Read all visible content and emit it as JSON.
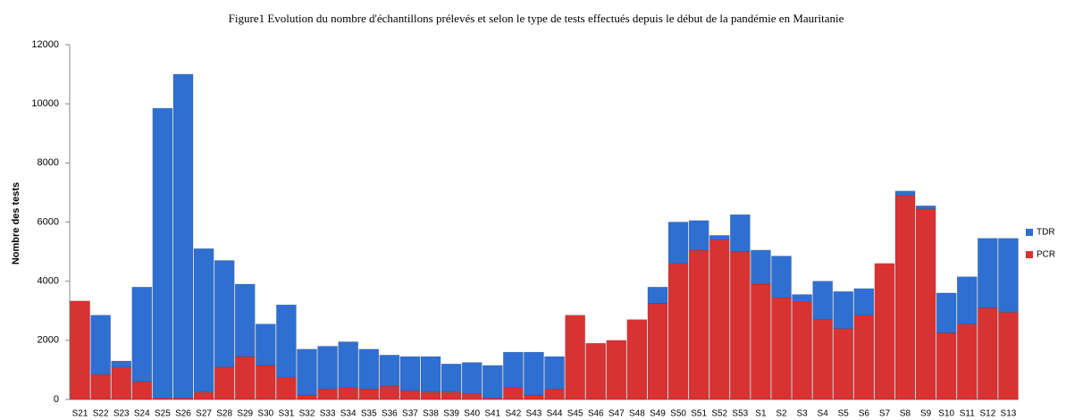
{
  "chart_data": {
    "type": "stacked_bar",
    "title": "Figure1 Evolution du nombre d'échantillons prélevés et selon le type de tests effectués depuis le début de la pandémie en Mauritanie",
    "y_label": "Nombre des tests",
    "categories": [
      "S21",
      "S22",
      "S23",
      "S24",
      "S25",
      "S26",
      "S27",
      "S28",
      "S29",
      "S30",
      "S31",
      "S32",
      "S33",
      "S34",
      "S35",
      "S36",
      "S37",
      "S38",
      "S39",
      "S40",
      "S41",
      "S42",
      "S43",
      "S44",
      "S45",
      "S46",
      "S47",
      "S48",
      "S49",
      "S50",
      "S51",
      "S52",
      "S53",
      "S1",
      "S2",
      "S3",
      "S4",
      "S5",
      "S6",
      "S7",
      "S8",
      "S9",
      "S10",
      "S11",
      "S12",
      "S13"
    ],
    "series": [
      {
        "name": "PCR",
        "color": "#d83232",
        "values": [
          3330,
          850,
          1100,
          600,
          50,
          50,
          250,
          1100,
          1450,
          1150,
          750,
          150,
          350,
          400,
          350,
          450,
          300,
          250,
          250,
          200,
          50,
          400,
          150,
          350,
          2850,
          1900,
          2000,
          2700,
          3250,
          4600,
          5050,
          5400,
          5000,
          3900,
          3450,
          3300,
          2700,
          2400,
          2850,
          4600,
          6900,
          6450,
          2250,
          2550,
          3100,
          2950
        ]
      },
      {
        "name": "TDR",
        "color": "#2f6fd2",
        "values": [
          0,
          2000,
          200,
          3200,
          9800,
          10950,
          4850,
          3600,
          2450,
          1400,
          2450,
          1550,
          1450,
          1550,
          1350,
          1050,
          1150,
          1200,
          950,
          1050,
          1100,
          1200,
          1450,
          1100,
          0,
          0,
          0,
          0,
          550,
          1400,
          1000,
          150,
          1250,
          1150,
          1400,
          250,
          1300,
          1250,
          900,
          0,
          150,
          100,
          1350,
          1600,
          2350,
          2500
        ]
      }
    ],
    "ylim": [
      0,
      12000
    ],
    "yticks": [
      0,
      2000,
      4000,
      6000,
      8000,
      10000,
      12000
    ],
    "legend": "right"
  }
}
